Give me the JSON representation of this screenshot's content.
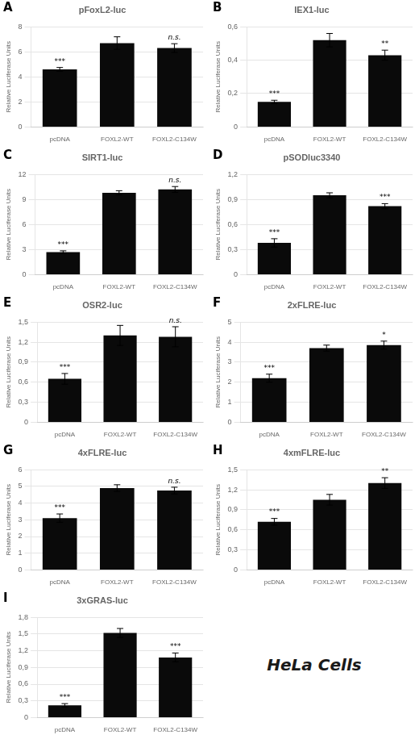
{
  "chart_data": [
    {
      "type": "bar",
      "label": "A",
      "title": "pFoxL2-luc",
      "ylabel": "Relative Luciferase Units",
      "categories": [
        "pcDNA",
        "FOXL2-WT",
        "FOXL2-C134W"
      ],
      "values": [
        4.6,
        6.7,
        6.3
      ],
      "errors": [
        0.15,
        0.5,
        0.35
      ],
      "color": "#0a0a0a",
      "ylim": [
        0,
        8
      ],
      "yticks": [
        0,
        2,
        4,
        6,
        8
      ],
      "grid": true,
      "annotations": [
        {
          "text": "***",
          "category": "pcDNA"
        },
        {
          "text": "n.s.",
          "category": "FOXL2-C134W"
        }
      ]
    },
    {
      "type": "bar",
      "label": "B",
      "title": "IEX1-luc",
      "ylabel": "Relative Luciferase Units",
      "categories": [
        "pcDNA",
        "FOXL2-WT",
        "FOXL2-C134W"
      ],
      "values": [
        0.15,
        0.52,
        0.43
      ],
      "errors": [
        0.01,
        0.04,
        0.03
      ],
      "color": "#0a0a0a",
      "ylim": [
        0,
        0.6
      ],
      "yticks": [
        0,
        {
          "value": 0.2,
          "label": "0,2"
        },
        {
          "value": 0.4,
          "label": "0,4"
        },
        {
          "value": 0.6,
          "label": "0,6"
        }
      ],
      "grid": true,
      "annotations": [
        {
          "text": "***",
          "category": "pcDNA"
        },
        {
          "text": "**",
          "category": "FOXL2-C134W"
        }
      ]
    },
    {
      "type": "bar",
      "label": "C",
      "title": "SIRT1-luc",
      "ylabel": "Relative Luciferase Units",
      "categories": [
        "pcDNA",
        "FOXL2-WT",
        "FOXL2-C134W"
      ],
      "values": [
        2.7,
        9.8,
        10.2
      ],
      "errors": [
        0.15,
        0.25,
        0.35
      ],
      "color": "#0a0a0a",
      "ylim": [
        0,
        12
      ],
      "yticks": [
        0,
        3,
        6,
        9,
        12
      ],
      "grid": true,
      "annotations": [
        {
          "text": "***",
          "category": "pcDNA"
        },
        {
          "text": "n.s.",
          "category": "FOXL2-C134W"
        }
      ]
    },
    {
      "type": "bar",
      "label": "D",
      "title": "pSODluc3340",
      "ylabel": "Relative Luciferase Units",
      "categories": [
        "pcDNA",
        "FOXL2-WT",
        "FOXL2-C134W"
      ],
      "values": [
        0.38,
        0.95,
        0.82
      ],
      "errors": [
        0.05,
        0.03,
        0.03
      ],
      "color": "#0a0a0a",
      "ylim": [
        0,
        1.2
      ],
      "yticks": [
        0,
        {
          "value": 0.3,
          "label": "0,3"
        },
        {
          "value": 0.6,
          "label": "0,6"
        },
        {
          "value": 0.9,
          "label": "0,9"
        },
        {
          "value": 1.2,
          "label": "1,2"
        }
      ],
      "grid": true,
      "annotations": [
        {
          "text": "***",
          "category": "pcDNA"
        },
        {
          "text": "***",
          "category": "FOXL2-C134W"
        }
      ]
    },
    {
      "type": "bar",
      "label": "E",
      "title": "OSR2-luc",
      "ylabel": "Relative Luciferase Units",
      "categories": [
        "pcDNA",
        "FOXL2-WT",
        "FOXL2-C134W"
      ],
      "values": [
        0.65,
        1.3,
        1.28
      ],
      "errors": [
        0.08,
        0.15,
        0.15
      ],
      "color": "#0a0a0a",
      "ylim": [
        0,
        1.5
      ],
      "yticks": [
        0,
        {
          "value": 0.3,
          "label": "0,3"
        },
        {
          "value": 0.6,
          "label": "0,6"
        },
        {
          "value": 0.9,
          "label": "0,9"
        },
        {
          "value": 1.2,
          "label": "1,2"
        },
        {
          "value": 1.5,
          "label": "1,5"
        }
      ],
      "grid": true,
      "annotations": [
        {
          "text": "***",
          "category": "pcDNA"
        },
        {
          "text": "n.s.",
          "category": "FOXL2-C134W"
        }
      ]
    },
    {
      "type": "bar",
      "label": "F",
      "title": "2xFLRE-luc",
      "ylabel": "Relative Luciferase Units",
      "categories": [
        "pcDNA",
        "FOXL2-WT",
        "FOXL2-C134W"
      ],
      "values": [
        2.2,
        3.7,
        3.85
      ],
      "errors": [
        0.2,
        0.15,
        0.2
      ],
      "color": "#0a0a0a",
      "ylim": [
        0,
        5
      ],
      "yticks": [
        0,
        1,
        2,
        3,
        4,
        5
      ],
      "grid": true,
      "annotations": [
        {
          "text": "***",
          "category": "pcDNA"
        },
        {
          "text": "*",
          "category": "FOXL2-C134W"
        }
      ]
    },
    {
      "type": "bar",
      "label": "G",
      "title": "4xFLRE-luc",
      "ylabel": "Relative Luciferase Units",
      "categories": [
        "pcDNA",
        "FOXL2-WT",
        "FOXL2-C134W"
      ],
      "values": [
        3.1,
        4.9,
        4.75
      ],
      "errors": [
        0.25,
        0.2,
        0.2
      ],
      "color": "#0a0a0a",
      "ylim": [
        0,
        6
      ],
      "yticks": [
        0,
        1,
        2,
        3,
        4,
        5,
        6
      ],
      "grid": true,
      "annotations": [
        {
          "text": "***",
          "category": "pcDNA"
        },
        {
          "text": "n.s.",
          "category": "FOXL2-C134W"
        }
      ]
    },
    {
      "type": "bar",
      "label": "H",
      "title": "4xmFLRE-luc",
      "ylabel": "Relative Luciferase Units",
      "categories": [
        "pcDNA",
        "FOXL2-WT",
        "FOXL2-C134W"
      ],
      "values": [
        0.72,
        1.05,
        1.3
      ],
      "errors": [
        0.05,
        0.08,
        0.08
      ],
      "color": "#0a0a0a",
      "ylim": [
        0,
        1.5
      ],
      "yticks": [
        0,
        {
          "value": 0.3,
          "label": "0,3"
        },
        {
          "value": 0.6,
          "label": "0,6"
        },
        {
          "value": 0.9,
          "label": "0,9"
        },
        {
          "value": 1.2,
          "label": "1,2"
        },
        {
          "value": 1.5,
          "label": "1,5"
        }
      ],
      "grid": true,
      "annotations": [
        {
          "text": "***",
          "category": "pcDNA"
        },
        {
          "text": "**",
          "category": "FOXL2-C134W"
        }
      ]
    },
    {
      "type": "bar",
      "label": "I",
      "title": "3xGRAS-luc",
      "ylabel": "Relative Luciferase Units",
      "categories": [
        "pcDNA",
        "FOXL2-WT",
        "FOXL2-C134W"
      ],
      "values": [
        0.22,
        1.52,
        1.08
      ],
      "errors": [
        0.03,
        0.08,
        0.08
      ],
      "color": "#0a0a0a",
      "ylim": [
        0,
        1.8
      ],
      "yticks": [
        0,
        {
          "value": 0.3,
          "label": "0,3"
        },
        {
          "value": 0.6,
          "label": "0,6"
        },
        {
          "value": 0.9,
          "label": "0,9"
        },
        {
          "value": 1.2,
          "label": "1,2"
        },
        {
          "value": 1.5,
          "label": "1,5"
        },
        {
          "value": 1.8,
          "label": "1,8"
        }
      ],
      "grid": true,
      "annotations": [
        {
          "text": "***",
          "category": "pcDNA"
        },
        {
          "text": "***",
          "category": "FOXL2-C134W"
        }
      ]
    }
  ],
  "annotations": [
    {
      "text": "HeLa Cells"
    }
  ]
}
